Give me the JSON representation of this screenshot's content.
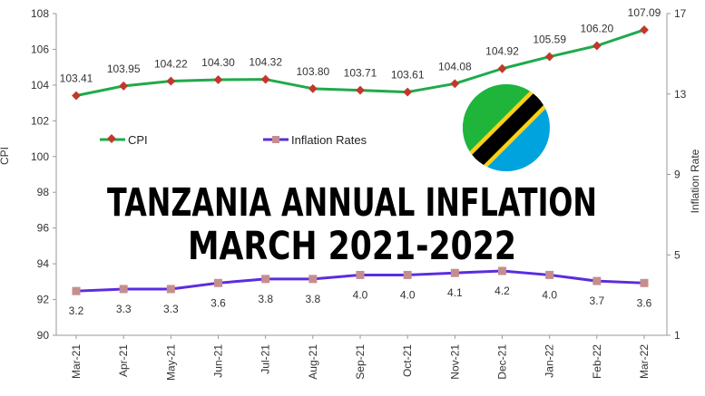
{
  "headline": {
    "line1": "TANZANIA ANNUAL INFLATION",
    "line2": "MARCH 2021-2022"
  },
  "flag": {
    "icon": "tanzania-flag-icon",
    "colors": {
      "green": "#1eb53a",
      "blue": "#00a3dd",
      "yellow": "#fcd116",
      "black": "#000000"
    }
  },
  "chart_data": {
    "type": "line",
    "categories": [
      "Mar-21",
      "Apr-21",
      "May-21",
      "Jun-21",
      "Jul-21",
      "Aug-21",
      "Sep-21",
      "Oct-21",
      "Nov-21",
      "Dec-21",
      "Jan-22",
      "Feb-22",
      "Mar-22"
    ],
    "series": [
      {
        "name": "CPI",
        "axis": "left",
        "color": "#1faa4a",
        "marker_color": "#c0392b",
        "values": [
          103.41,
          103.95,
          104.22,
          104.3,
          104.32,
          103.8,
          103.71,
          103.61,
          104.08,
          104.92,
          105.59,
          106.2,
          107.09
        ],
        "labels": [
          "103.41",
          "103.95",
          "104.22",
          "104.30",
          "104.32",
          "103.80",
          "103.71",
          "103.61",
          "104.08",
          "104.92",
          "105.59",
          "106.20",
          "107.09"
        ]
      },
      {
        "name": "Inflation Rates",
        "axis": "right",
        "color": "#5a2de0",
        "marker_color": "#c58e8e",
        "values": [
          3.2,
          3.3,
          3.3,
          3.6,
          3.8,
          3.8,
          4.0,
          4.0,
          4.1,
          4.2,
          4.0,
          3.7,
          3.6
        ],
        "labels": [
          "3.2",
          "3.3",
          "3.3",
          "3.6",
          "3.8",
          "3.8",
          "4.0",
          "4.0",
          "4.1",
          "4.2",
          "4.0",
          "3.7",
          "3.6"
        ]
      }
    ],
    "ylabel": "CPI",
    "y2label": "Inflation Rate",
    "ylim": [
      90,
      108
    ],
    "yticks": [
      "90",
      "92",
      "94",
      "96",
      "98",
      "100",
      "102",
      "104",
      "106",
      "108"
    ],
    "y2lim": [
      1,
      17
    ],
    "y2ticks": [
      "1",
      "5",
      "9",
      "13",
      "17"
    ],
    "grid": false,
    "legend": "inside-top-left"
  }
}
